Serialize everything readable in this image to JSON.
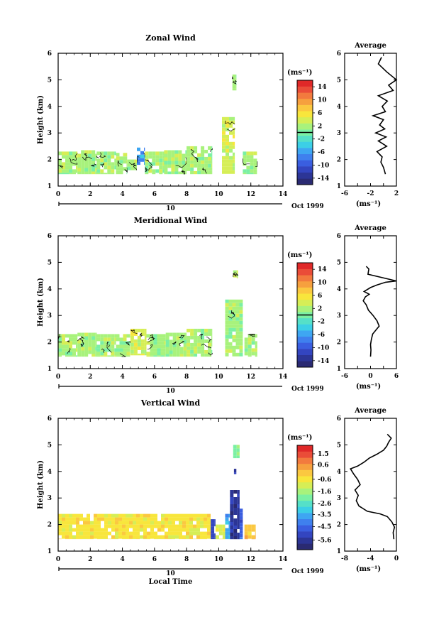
{
  "date_label": "Oct 1999",
  "day_label": "10",
  "xlabel": "Local Time",
  "ylabel": "Height (km)",
  "unit_label": "(ms⁻¹)",
  "profile_title": "Average",
  "colors": [
    "#2a2a72",
    "#2c3596",
    "#3345c0",
    "#3a5ee0",
    "#3f80ee",
    "#3ea6f2",
    "#3ccfe6",
    "#55e0c8",
    "#7af0a4",
    "#a8f27c",
    "#d6ee56",
    "#f8e63c",
    "#fbc840",
    "#f6a03e",
    "#f27a3e",
    "#ea4c38",
    "#e02828"
  ],
  "chart_data": [
    {
      "type": "heatmap",
      "title": "Zonal Wind",
      "xlim": [
        0,
        14
      ],
      "ylim": [
        1,
        6
      ],
      "xticks": [
        0,
        2,
        4,
        6,
        8,
        10,
        12,
        14
      ],
      "yticks": [
        1,
        2,
        3,
        4,
        5,
        6
      ],
      "colorbar": {
        "range": [
          -16,
          16
        ],
        "ticks": [
          14,
          10,
          6,
          2,
          -2,
          -6,
          -10,
          -14
        ],
        "zero_line": true
      },
      "values": {
        "columns": [
          {
            "x": [
              0.0,
              1.2
            ],
            "y": [
              1.45,
              2.3
            ],
            "level": 0.55
          },
          {
            "x": [
              1.2,
              2.4
            ],
            "y": [
              1.45,
              2.35
            ],
            "level": 0.57
          },
          {
            "x": [
              2.4,
              3.6
            ],
            "y": [
              1.45,
              2.3
            ],
            "level": 0.55
          },
          {
            "x": [
              3.6,
              4.3
            ],
            "y": [
              1.45,
              2.25
            ],
            "level": 0.56
          },
          {
            "x": [
              4.3,
              4.9
            ],
            "y": [
              1.6,
              2.0
            ],
            "level": 0.58
          },
          {
            "x": [
              4.9,
              5.4
            ],
            "y": [
              1.8,
              2.45
            ],
            "level": 0.3
          },
          {
            "x": [
              5.4,
              6.6
            ],
            "y": [
              1.45,
              2.3
            ],
            "level": 0.57
          },
          {
            "x": [
              6.6,
              8.0
            ],
            "y": [
              1.45,
              2.35
            ],
            "level": 0.56
          },
          {
            "x": [
              8.0,
              9.6
            ],
            "y": [
              1.45,
              2.5
            ],
            "level": 0.56
          },
          {
            "x": [
              10.2,
              11.0
            ],
            "y": [
              1.45,
              3.6
            ],
            "level": 0.6
          },
          {
            "x": [
              10.85,
              11.1
            ],
            "y": [
              4.6,
              5.2
            ],
            "level": 0.58
          },
          {
            "x": [
              11.5,
              12.4
            ],
            "y": [
              1.45,
              2.3
            ],
            "level": 0.56
          }
        ]
      },
      "profile": {
        "xlabel": "(ms⁻¹)",
        "xlim": [
          -6,
          2
        ],
        "xticks": [
          -6,
          -4,
          -2,
          0,
          2
        ],
        "ylim": [
          1,
          6
        ],
        "yticks": [
          1,
          2,
          3,
          4,
          5,
          6
        ],
        "x": [
          0.3,
          0.0,
          -0.4,
          -0.2,
          -1.0,
          0.5,
          -0.8,
          0.4,
          -1.2,
          0.2,
          -0.6,
          0.0,
          -1.6,
          0.3,
          -0.2,
          0.6,
          -0.8,
          1.5,
          0.8,
          2.0,
          0.5,
          -0.8,
          -0.3
        ],
        "y": [
          1.45,
          1.7,
          1.9,
          2.1,
          2.3,
          2.5,
          2.7,
          2.85,
          3.0,
          3.15,
          3.3,
          3.5,
          3.65,
          3.8,
          4.0,
          4.2,
          4.4,
          4.6,
          4.8,
          5.0,
          5.3,
          5.6,
          5.85
        ]
      }
    },
    {
      "type": "heatmap",
      "title": "Meridional Wind",
      "xlim": [
        0,
        14
      ],
      "ylim": [
        1,
        6
      ],
      "xticks": [
        0,
        2,
        4,
        6,
        8,
        10,
        12,
        14
      ],
      "yticks": [
        1,
        2,
        3,
        4,
        5,
        6
      ],
      "colorbar": {
        "range": [
          -16,
          16
        ],
        "ticks": [
          14,
          10,
          6,
          2,
          -2,
          -6,
          -10,
          -14
        ],
        "zero_line": true
      },
      "values": {
        "columns": [
          {
            "x": [
              0.0,
              1.2
            ],
            "y": [
              1.45,
              2.3
            ],
            "level": 0.56
          },
          {
            "x": [
              1.2,
              2.4
            ],
            "y": [
              1.45,
              2.35
            ],
            "level": 0.57
          },
          {
            "x": [
              2.4,
              3.6
            ],
            "y": [
              1.45,
              2.3
            ],
            "level": 0.55
          },
          {
            "x": [
              3.6,
              4.5
            ],
            "y": [
              1.45,
              2.3
            ],
            "level": 0.57
          },
          {
            "x": [
              4.5,
              5.5
            ],
            "y": [
              1.5,
              2.5
            ],
            "level": 0.63
          },
          {
            "x": [
              5.5,
              6.7
            ],
            "y": [
              1.45,
              2.3
            ],
            "level": 0.56
          },
          {
            "x": [
              6.7,
              8.0
            ],
            "y": [
              1.45,
              2.35
            ],
            "level": 0.55
          },
          {
            "x": [
              8.0,
              9.6
            ],
            "y": [
              1.45,
              2.5
            ],
            "level": 0.56
          },
          {
            "x": [
              10.4,
              11.5
            ],
            "y": [
              1.45,
              3.6
            ],
            "level": 0.56
          },
          {
            "x": [
              10.9,
              11.2
            ],
            "y": [
              4.4,
              4.7
            ],
            "level": 0.55
          },
          {
            "x": [
              11.6,
              12.4
            ],
            "y": [
              1.45,
              2.3
            ],
            "level": 0.56
          }
        ]
      },
      "profile": {
        "xlabel": "(ms⁻¹)",
        "xlim": [
          -6,
          6
        ],
        "xticks": [
          -6,
          -3,
          0,
          3,
          6
        ],
        "ylim": [
          1,
          6
        ],
        "yticks": [
          1,
          2,
          3,
          4,
          5,
          6
        ],
        "x": [
          0.0,
          0.1,
          0.0,
          0.2,
          0.5,
          1.5,
          2.0,
          1.5,
          0.6,
          -0.5,
          -1.0,
          -1.7,
          -1.2,
          -0.3,
          -1.5,
          0.0,
          1.5,
          3.5,
          6.0,
          -0.6,
          -0.4,
          -1.0
        ],
        "y": [
          1.45,
          1.7,
          1.9,
          2.1,
          2.3,
          2.5,
          2.6,
          2.8,
          3.0,
          3.2,
          3.4,
          3.55,
          3.7,
          3.8,
          3.9,
          4.05,
          4.15,
          4.25,
          4.3,
          4.55,
          4.75,
          4.85
        ]
      }
    },
    {
      "type": "heatmap",
      "title": "Vertical Wind",
      "xlim": [
        0,
        14
      ],
      "ylim": [
        1,
        6
      ],
      "xticks": [
        0,
        2,
        4,
        6,
        8,
        10,
        12,
        14
      ],
      "yticks": [
        1,
        2,
        3,
        4,
        5,
        6
      ],
      "colorbar": {
        "range": [
          -6.4,
          2.2
        ],
        "ticks": [
          1.5,
          0.6,
          -0.6,
          -1.6,
          -2.6,
          -3.5,
          -4.5,
          -5.6
        ],
        "zero_line": false
      },
      "values": {
        "columns": [
          {
            "x": [
              0.0,
              9.5
            ],
            "y": [
              1.45,
              2.4
            ],
            "level": 0.7
          },
          {
            "x": [
              9.5,
              9.8
            ],
            "y": [
              1.45,
              2.2
            ],
            "level": 0.15
          },
          {
            "x": [
              9.8,
              10.4
            ],
            "y": [
              1.45,
              2.0
            ],
            "level": 0.6
          },
          {
            "x": [
              10.4,
              10.7
            ],
            "y": [
              1.45,
              2.4
            ],
            "level": 0.3
          },
          {
            "x": [
              10.7,
              11.3
            ],
            "y": [
              1.45,
              3.3
            ],
            "level": 0.08
          },
          {
            "x": [
              11.3,
              11.5
            ],
            "y": [
              1.45,
              2.6
            ],
            "level": 0.2
          },
          {
            "x": [
              11.6,
              12.3
            ],
            "y": [
              1.45,
              2.0
            ],
            "level": 0.72
          },
          {
            "x": [
              10.9,
              11.3
            ],
            "y": [
              4.5,
              5.0
            ],
            "level": 0.5
          },
          {
            "x": [
              10.95,
              11.1
            ],
            "y": [
              3.9,
              4.1
            ],
            "level": 0.05
          }
        ]
      },
      "profile": {
        "xlabel": "(ms⁻¹)",
        "xlim": [
          -8,
          0
        ],
        "xticks": [
          -8,
          -6,
          -4,
          -2,
          0
        ],
        "ylim": [
          1,
          6
        ],
        "yticks": [
          1,
          2,
          3,
          4,
          5,
          6
        ],
        "x": [
          -0.4,
          -0.5,
          -0.3,
          -0.7,
          -1.4,
          -2.5,
          -4.5,
          -5.8,
          -6.2,
          -5.9,
          -6.4,
          -5.6,
          -6.0,
          -6.6,
          -7.1,
          -6.0,
          -5.0,
          -4.2,
          -3.0,
          -2.0,
          -1.5,
          -1.2,
          -0.8,
          -1.4
        ],
        "y": [
          1.45,
          1.7,
          1.9,
          2.1,
          2.3,
          2.4,
          2.5,
          2.7,
          2.9,
          3.1,
          3.3,
          3.5,
          3.7,
          3.9,
          4.1,
          4.2,
          4.35,
          4.5,
          4.65,
          4.8,
          4.95,
          5.1,
          5.25,
          5.4
        ]
      }
    }
  ]
}
